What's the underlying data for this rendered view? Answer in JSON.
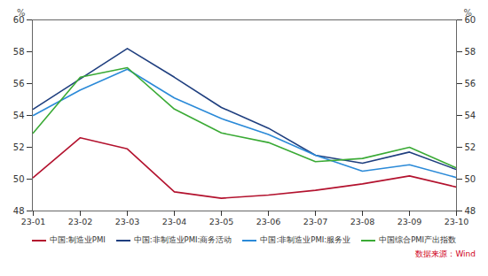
{
  "chart_data": {
    "type": "line",
    "categories": [
      "23-01",
      "23-02",
      "23-03",
      "23-04",
      "23-05",
      "23-06",
      "23-07",
      "23-08",
      "23-09",
      "23-10"
    ],
    "series": [
      {
        "name": "中国:制造业PMI",
        "color": "#b3122e",
        "values": [
          50.1,
          52.6,
          51.9,
          49.2,
          48.8,
          49.0,
          49.3,
          49.7,
          50.2,
          49.5
        ]
      },
      {
        "name": "中国:非制造业PMI:商务活动",
        "color": "#1f3f7f",
        "values": [
          54.4,
          56.3,
          58.2,
          56.4,
          54.5,
          53.2,
          51.5,
          51.0,
          51.7,
          50.6
        ]
      },
      {
        "name": "中国:非制造业PMI:服务业",
        "color": "#2b8ad8",
        "values": [
          54.0,
          55.6,
          56.9,
          55.1,
          53.8,
          52.8,
          51.5,
          50.5,
          50.9,
          50.1
        ]
      },
      {
        "name": "中国综合PMI产出指数",
        "color": "#3aaa35",
        "values": [
          52.9,
          56.4,
          57.0,
          54.4,
          52.9,
          52.3,
          51.1,
          51.3,
          52.0,
          50.7
        ]
      }
    ],
    "y_label": "%",
    "ylim": [
      48,
      60
    ],
    "yticks": [
      48,
      50,
      52,
      54,
      56,
      58,
      60
    ],
    "grid": false,
    "legend": "bottom",
    "source": "数据来源：Wind"
  }
}
